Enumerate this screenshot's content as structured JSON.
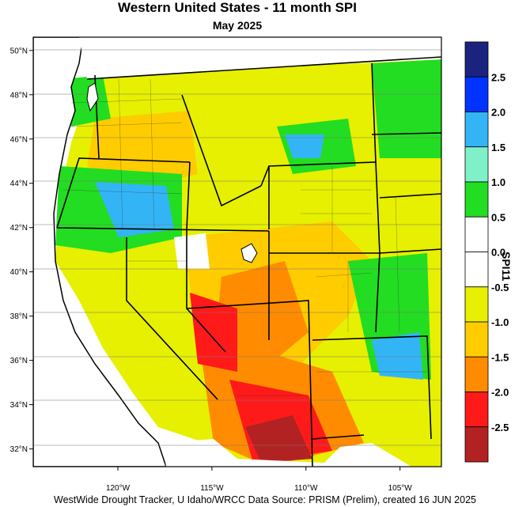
{
  "header": {
    "title": "Western United States - 11 month SPI",
    "subtitle": "May 2025"
  },
  "footer": {
    "credit": "WestWide Drought Tracker, U Idaho/WRCC Data Source: PRISM (Prelim), created 16 JUN 2025"
  },
  "map": {
    "lat_labels": [
      "50°N",
      "48°N",
      "46°N",
      "44°N",
      "42°N",
      "40°N",
      "38°N",
      "36°N",
      "34°N",
      "32°N"
    ],
    "lat_values": [
      50,
      48,
      46,
      44,
      42,
      40,
      38,
      36,
      34,
      32
    ],
    "lon_labels": [
      "120°W",
      "115°W",
      "110°W",
      "105°W"
    ],
    "lon_values": [
      -120,
      -115,
      -110,
      -105
    ],
    "extent": {
      "lon_min": -124.5,
      "lon_max": -102.8,
      "lat_min": 31.2,
      "lat_max": 50.6
    }
  },
  "legend": {
    "title": "SPI11",
    "labels": [
      "2.5",
      "2.0",
      "1.5",
      "1.0",
      "0.5",
      "0.0",
      "-0.5",
      "-1.0",
      "-1.5",
      "-2.0",
      "-2.5"
    ],
    "colors": [
      "#1a237e",
      "#0033ff",
      "#33b5f5",
      "#80f0c8",
      "#22dd22",
      "#ffffff",
      "#ffffff",
      "#e6f000",
      "#ffcc00",
      "#ff8c00",
      "#ff1a1a",
      "#b22222"
    ]
  }
}
